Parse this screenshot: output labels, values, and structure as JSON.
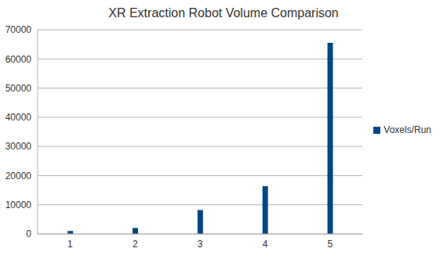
{
  "chart_data": {
    "type": "bar",
    "title": "XR Extraction Robot Volume Comparison",
    "categories": [
      "1",
      "2",
      "3",
      "4",
      "5"
    ],
    "series": [
      {
        "name": "Voxels/Run",
        "color": "#004586",
        "values": [
          1024,
          2048,
          8192,
          16384,
          65536
        ]
      }
    ],
    "ylim": [
      0,
      70000
    ],
    "yticks": [
      0,
      10000,
      20000,
      30000,
      40000,
      50000,
      60000,
      70000
    ],
    "grid": true,
    "legend": "right"
  }
}
